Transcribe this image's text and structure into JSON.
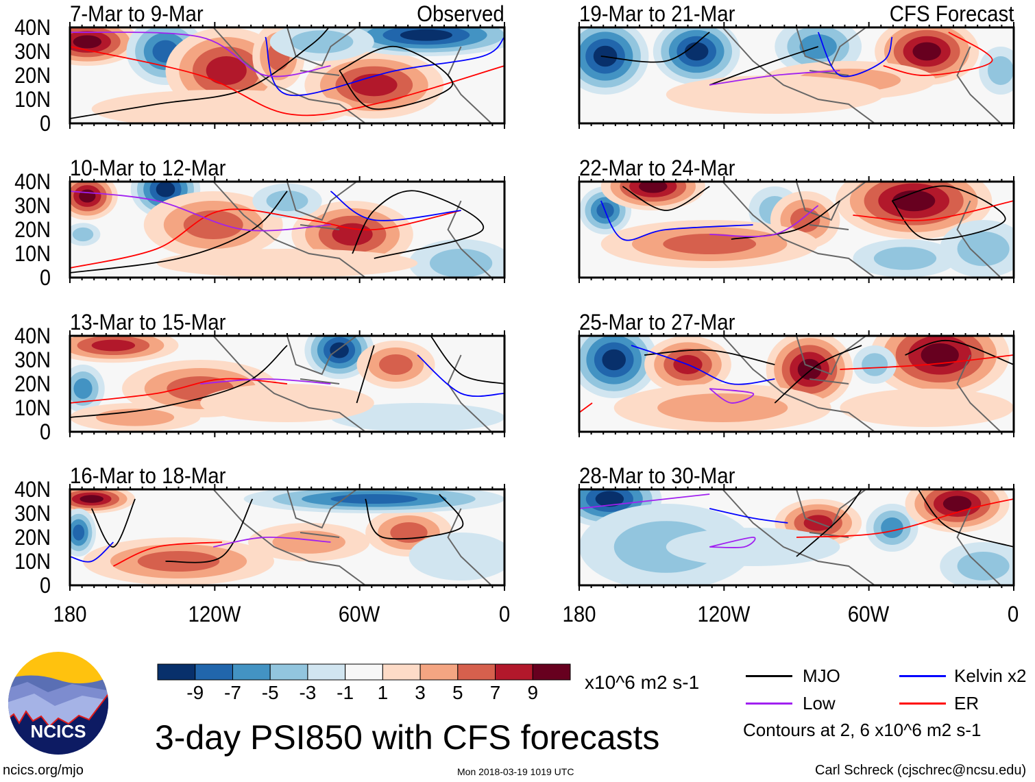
{
  "panels": [
    {
      "title": "7-Mar to 9-Mar",
      "label": "Observed"
    },
    {
      "title": "10-Mar to 12-Mar",
      "label": ""
    },
    {
      "title": "13-Mar to 15-Mar",
      "label": ""
    },
    {
      "title": "16-Mar to 18-Mar",
      "label": ""
    },
    {
      "title": "19-Mar to 21-Mar",
      "label": "CFS Forecast"
    },
    {
      "title": "22-Mar to 24-Mar",
      "label": ""
    },
    {
      "title": "25-Mar to 27-Mar",
      "label": ""
    },
    {
      "title": "28-Mar to 30-Mar",
      "label": ""
    }
  ],
  "axes": {
    "y_ticks": [
      "40N",
      "30N",
      "20N",
      "10N",
      "0"
    ],
    "x_ticks": [
      "180",
      "120W",
      "60W",
      "0"
    ]
  },
  "colorbar": {
    "colors": [
      "#08306b",
      "#2166ac",
      "#4393c3",
      "#92c5de",
      "#d1e5f0",
      "#f7f7f7",
      "#fddbc7",
      "#f4a582",
      "#d6604d",
      "#b2182b",
      "#67001f"
    ],
    "labels": [
      "-9",
      "-7",
      "-5",
      "-3",
      "-1",
      "1",
      "3",
      "5",
      "7",
      "9"
    ],
    "units": "x10^6 m2 s-1"
  },
  "legend": {
    "items": [
      {
        "label": "MJO",
        "color": "#000000"
      },
      {
        "label": "Kelvin x2",
        "color": "#0000ff"
      },
      {
        "label": "Low",
        "color": "#a020f0"
      },
      {
        "label": "ER",
        "color": "#ff0000"
      }
    ],
    "contours_note": "Contours at 2, 6 x10^6 m2 s-1"
  },
  "title": "3-day PSI850 with CFS forecasts",
  "footer": {
    "left": "ncics.org/mjo",
    "center": "Mon 2018-03-19 1019 UTC",
    "right": "Carl Schreck (cjschrec@ncsu.edu)"
  },
  "logo": {
    "text": "NCICS"
  }
}
